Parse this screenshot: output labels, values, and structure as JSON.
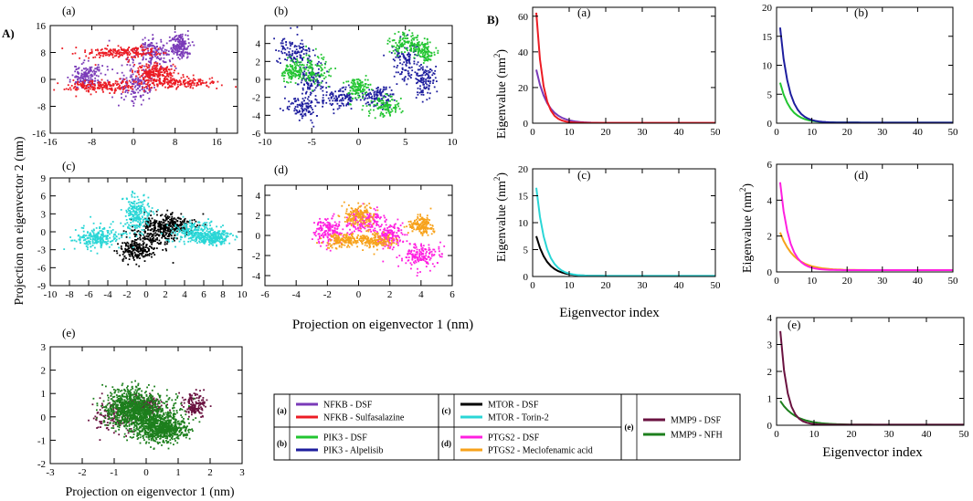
{
  "panel_groups": {
    "A": "A)",
    "B": "B)"
  },
  "chart_data": [
    {
      "id": "A-a",
      "type": "scatter",
      "label": "(a)",
      "xlim": [
        -16,
        20
      ],
      "ylim": [
        -16,
        16
      ],
      "xticks": [
        "-16",
        "-8",
        "0",
        "8",
        "16"
      ],
      "yticks": [
        "-16",
        "-8",
        "0",
        "8",
        "16"
      ],
      "series": [
        {
          "name": "NFKB - DSF",
          "color": "#7a3ab8",
          "clusters": [
            [
              -9,
              1,
              2.5,
              3
            ],
            [
              1,
              -1,
              3,
              5
            ],
            [
              4,
              8,
              4,
              3
            ],
            [
              9,
              10,
              1.5,
              3
            ]
          ],
          "n": 650
        },
        {
          "name": "NFKB - Sulfasalazine",
          "color": "#ec1c24",
          "clusters": [
            [
              -6,
              -2,
              6,
              1.5
            ],
            [
              8,
              -1,
              6,
              1.5
            ],
            [
              -2,
              8,
              6,
              1.5
            ],
            [
              4,
              2,
              3,
              2
            ]
          ],
          "n": 800
        }
      ]
    },
    {
      "id": "A-b",
      "type": "scatter",
      "label": "(b)",
      "xlim": [
        -10,
        10
      ],
      "ylim": [
        -6,
        6
      ],
      "xticks": [
        "-10",
        "-5",
        "0",
        "5",
        "10"
      ],
      "yticks": [
        "-6",
        "-4",
        "-2",
        "0",
        "2",
        "4"
      ],
      "series": [
        {
          "name": "PIK3 - Alpelisib",
          "color": "#1e1e9e",
          "clusters": [
            [
              -7,
              3,
              1.5,
              1.5
            ],
            [
              -5,
              0,
              1.2,
              1.5
            ],
            [
              -2,
              -2,
              1.5,
              1
            ],
            [
              2,
              -2,
              1.5,
              1
            ],
            [
              5,
              2,
              1.2,
              2
            ],
            [
              7,
              0,
              1,
              1.5
            ],
            [
              -6,
              -3,
              1.3,
              1.2
            ]
          ],
          "n": 800
        },
        {
          "name": "PIK3 - DSF",
          "color": "#22c531",
          "clusters": [
            [
              -7,
              1,
              1,
              1
            ],
            [
              -5,
              1,
              1.5,
              1.5
            ],
            [
              3,
              -3,
              1.5,
              1
            ],
            [
              5,
              4,
              1.5,
              1
            ],
            [
              7,
              3,
              1,
              1
            ],
            [
              0,
              -1,
              1,
              1
            ]
          ],
          "n": 650
        }
      ]
    },
    {
      "id": "A-c",
      "type": "scatter",
      "label": "(c)",
      "xlim": [
        -10,
        10
      ],
      "ylim": [
        -9,
        9
      ],
      "xticks": [
        "-10",
        "-8",
        "-6",
        "-4",
        "-2",
        "0",
        "2",
        "4",
        "6",
        "8",
        "10"
      ],
      "yticks": [
        "-9",
        "-6",
        "-3",
        "0",
        "3",
        "6",
        "9"
      ],
      "series": [
        {
          "name": "MTOR - DSF",
          "color": "#000000",
          "clusters": [
            [
              1,
              0,
              2,
              2
            ],
            [
              3,
              1,
              2,
              1.5
            ],
            [
              -1,
              -3,
              1.5,
              1.5
            ]
          ],
          "n": 650
        },
        {
          "name": "MTOR - Torin-2",
          "color": "#2ad6d6",
          "clusters": [
            [
              -5,
              -1,
              2,
              1.5
            ],
            [
              -1,
              3,
              1.2,
              2.5
            ],
            [
              5,
              0,
              2,
              1.5
            ],
            [
              7,
              -1,
              1.5,
              1
            ]
          ],
          "n": 900
        }
      ]
    },
    {
      "id": "A-d",
      "type": "scatter",
      "label": "(d)",
      "xlim": [
        -6,
        6
      ],
      "ylim": [
        -5,
        5
      ],
      "xticks": [
        "-6",
        "-4",
        "-2",
        "0",
        "2",
        "4",
        "6"
      ],
      "yticks": [
        "-4",
        "-2",
        "0",
        "2",
        "4"
      ],
      "series": [
        {
          "name": "PTGS2 - DSF",
          "color": "#ff1fe0",
          "clusters": [
            [
              -2,
              0.5,
              0.8,
              1
            ],
            [
              0.5,
              1.5,
              1,
              1
            ],
            [
              2,
              0,
              0.7,
              1
            ],
            [
              4,
              -2,
              1,
              1
            ]
          ],
          "n": 650
        },
        {
          "name": "PTGS2 - Meclofenamic acid",
          "color": "#f7a21b",
          "clusters": [
            [
              -1,
              -0.5,
              1,
              0.6
            ],
            [
              1,
              -0.5,
              1,
              0.6
            ],
            [
              0,
              2,
              0.8,
              0.8
            ],
            [
              4,
              1,
              0.7,
              0.8
            ]
          ],
          "n": 650
        }
      ]
    },
    {
      "id": "A-e",
      "type": "scatter",
      "label": "(e)",
      "xlim": [
        -3,
        3
      ],
      "ylim": [
        -2,
        3
      ],
      "xticks": [
        "-3",
        "-2",
        "-1",
        "0",
        "1",
        "2",
        "3"
      ],
      "yticks": [
        "-2",
        "-1",
        "0",
        "1",
        "2",
        "3"
      ],
      "series": [
        {
          "name": "MMP9 - DSF",
          "color": "#6a1240",
          "clusters": [
            [
              -1,
              0,
              0.6,
              0.6
            ],
            [
              1.5,
              0.5,
              0.3,
              0.4
            ],
            [
              0,
              0.5,
              0.5,
              0.3
            ]
          ],
          "n": 450
        },
        {
          "name": "MMP9 - NFH",
          "color": "#1d7f1d",
          "clusters": [
            [
              0,
              0,
              0.9,
              0.7
            ],
            [
              -0.5,
              0.5,
              0.6,
              0.6
            ],
            [
              0.5,
              -0.5,
              0.6,
              0.5
            ]
          ],
          "n": 1800
        }
      ]
    },
    {
      "id": "B-a",
      "type": "line",
      "label": "(a)",
      "xlim": [
        0,
        50
      ],
      "ylim": [
        0,
        65
      ],
      "xticks": [
        "0",
        "10",
        "20",
        "30",
        "40",
        "50"
      ],
      "yticks": [
        "0",
        "20",
        "40",
        "60"
      ],
      "series": [
        {
          "name": "NFKB - DSF",
          "color": "#7a3ab8",
          "y0": 30,
          "k": 0.33,
          "floor": 0.1
        },
        {
          "name": "NFKB - Sulfasalazine",
          "color": "#ec1c24",
          "y0": 62,
          "k": 0.55,
          "floor": 0.2
        }
      ]
    },
    {
      "id": "B-b",
      "type": "line",
      "label": "(b)",
      "xlim": [
        0,
        50
      ],
      "ylim": [
        0,
        20
      ],
      "xticks": [
        "0",
        "10",
        "20",
        "30",
        "40",
        "50"
      ],
      "yticks": [
        "0",
        "5",
        "10",
        "15",
        "20"
      ],
      "series": [
        {
          "name": "PIK3 - DSF",
          "color": "#22c531",
          "y0": 7,
          "k": 0.35,
          "floor": 0.1
        },
        {
          "name": "PIK3 - Alpelisib",
          "color": "#1e1e9e",
          "y0": 16.5,
          "k": 0.4,
          "floor": 0.1
        }
      ]
    },
    {
      "id": "B-c",
      "type": "line",
      "label": "(c)",
      "xlim": [
        0,
        50
      ],
      "ylim": [
        0,
        20
      ],
      "xticks": [
        "0",
        "10",
        "20",
        "30",
        "40",
        "50"
      ],
      "yticks": [
        "0",
        "5",
        "10",
        "15",
        "20"
      ],
      "series": [
        {
          "name": "MTOR - DSF",
          "color": "#000000",
          "y0": 7.5,
          "k": 0.35,
          "floor": 0.1
        },
        {
          "name": "MTOR - Torin-2",
          "color": "#2ad6d6",
          "y0": 16.5,
          "k": 0.4,
          "floor": 0.1
        }
      ]
    },
    {
      "id": "B-d",
      "type": "line",
      "label": "(d)",
      "xlim": [
        0,
        50
      ],
      "ylim": [
        0,
        6
      ],
      "xticks": [
        "0",
        "10",
        "20",
        "30",
        "40",
        "50"
      ],
      "yticks": [
        "0",
        "2",
        "4",
        "6"
      ],
      "series": [
        {
          "name": "PTGS2 - Meclofenamic acid",
          "color": "#f7a21b",
          "y0": 2.2,
          "k": 0.25,
          "floor": 0.1
        },
        {
          "name": "PTGS2 - DSF",
          "color": "#ff1fe0",
          "y0": 5,
          "k": 0.4,
          "floor": 0.1
        }
      ]
    },
    {
      "id": "B-e",
      "type": "line",
      "label": "(e)",
      "xlim": [
        0,
        50
      ],
      "ylim": [
        0,
        4
      ],
      "xticks": [
        "0",
        "10",
        "20",
        "30",
        "40",
        "50"
      ],
      "yticks": [
        "0",
        "1",
        "2",
        "3",
        "4"
      ],
      "series": [
        {
          "name": "MMP9 - NFH",
          "color": "#1d7f1d",
          "y0": 0.9,
          "k": 0.25,
          "floor": 0.02
        },
        {
          "name": "MMP9 - DSF",
          "color": "#6a1240",
          "y0": 3.5,
          "k": 0.55,
          "floor": 0.02
        }
      ]
    }
  ],
  "axis_titles": {
    "A_ylabel": "Projection on eigenvector 2 (nm)",
    "A_xlabel_top": "Projection on eigenvector 1 (nm)",
    "A_xlabel_bottom": "Projection on eigenvector 1 (nm)",
    "B_xlabel_mid": "Eigenvector index",
    "B_xlabel_bottom": "Eigenvector index"
  },
  "legend": {
    "groups": [
      {
        "label": "(a)",
        "entries": [
          {
            "text": "NFKB - DSF",
            "color": "#7a3ab8"
          },
          {
            "text": "NFKB - Sulfasalazine",
            "color": "#ec1c24"
          }
        ]
      },
      {
        "label": "(b)",
        "entries": [
          {
            "text": "PIK3 - DSF",
            "color": "#22c531"
          },
          {
            "text": "PIK3 - Alpelisib",
            "color": "#1e1e9e"
          }
        ]
      },
      {
        "label": "(c)",
        "entries": [
          {
            "text": "MTOR - DSF",
            "color": "#000000"
          },
          {
            "text": "MTOR - Torin-2",
            "color": "#2ad6d6"
          }
        ]
      },
      {
        "label": "(d)",
        "entries": [
          {
            "text": "PTGS2 - DSF",
            "color": "#ff1fe0"
          },
          {
            "text": "PTGS2 - Meclofenamic acid",
            "color": "#f7a21b"
          }
        ]
      },
      {
        "label": "(e)",
        "entries": [
          {
            "text": "MMP9 - DSF",
            "color": "#6a1240"
          },
          {
            "text": "MMP9 - NFH",
            "color": "#1d7f1d"
          }
        ]
      }
    ]
  }
}
